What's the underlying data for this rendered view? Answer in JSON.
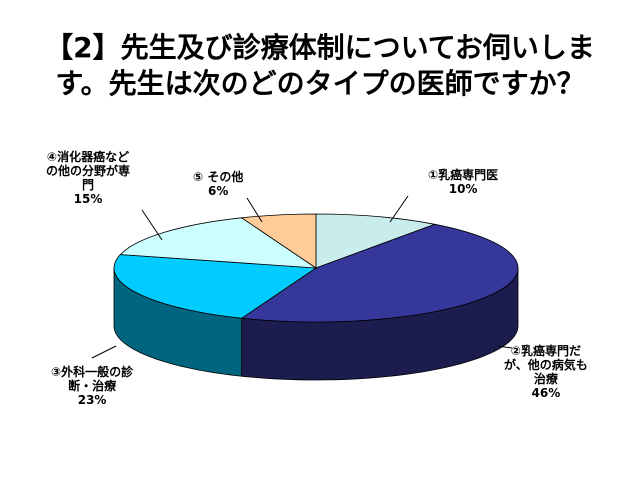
{
  "title_lines": [
    "【2】先生及び診療体制についてお伺いしま",
    "す。先生は次のどのタイプの医師ですか？"
  ],
  "chart_data": {
    "type": "pie",
    "title": "【2】先生及び診療体制についてお伺いします。先生は次のどのタイプの医師ですか？",
    "slices": [
      {
        "label_lines": [
          "①乳癌専門医"
        ],
        "value": 10,
        "pct_label": "10%",
        "top": "#c9ecec",
        "side": "#7fa6a6"
      },
      {
        "label_lines": [
          "②乳癌専門だ",
          "が、他の病気も",
          "治療"
        ],
        "value": 46,
        "pct_label": "46%",
        "top": "#36379a",
        "side": "#1c1c4f"
      },
      {
        "label_lines": [
          "③外科一般の診",
          "断・治療"
        ],
        "value": 23,
        "pct_label": "23%",
        "top": "#00ccff",
        "side": "#006680"
      },
      {
        "label_lines": [
          "④消化器癌など",
          "の他の分野が専",
          "門"
        ],
        "value": 15,
        "pct_label": "15%",
        "top": "#ccffff",
        "side": "#80a0a0"
      },
      {
        "label_lines": [
          "⑤ その他"
        ],
        "value": 6,
        "pct_label": "6%",
        "top": "#ffcc99",
        "side": "#a07a52"
      }
    ]
  }
}
